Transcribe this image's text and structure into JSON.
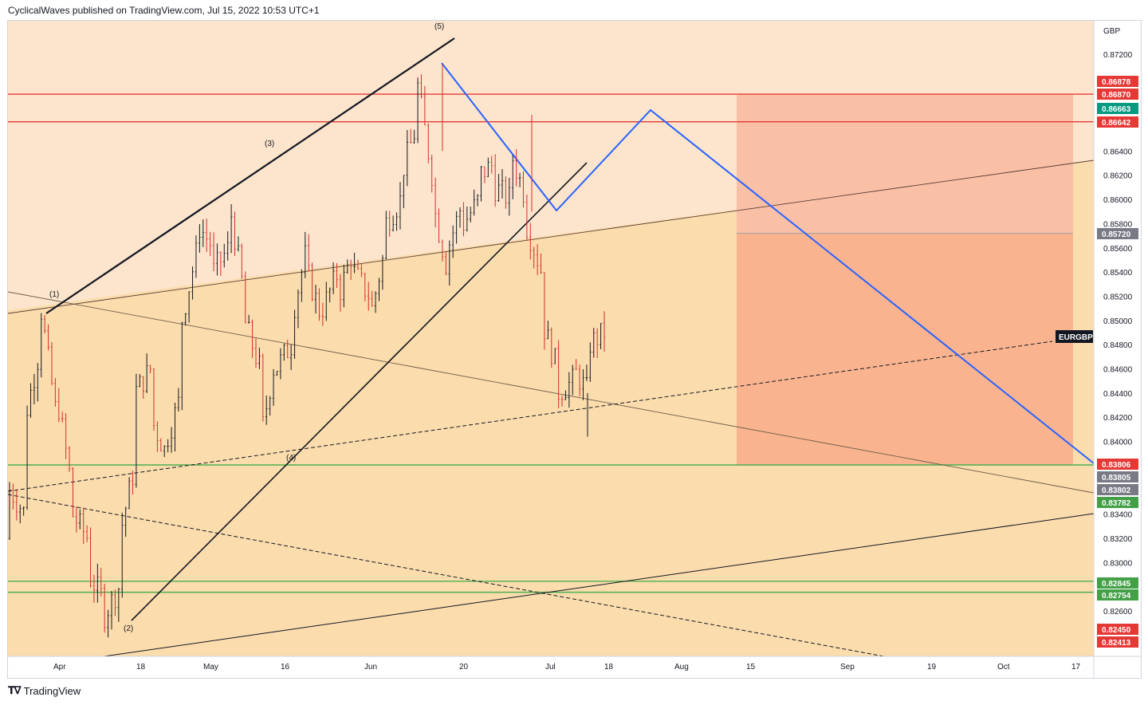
{
  "header": {
    "publisher_line": "CyclicalWaves published on TradingView.com, Jul 15, 2022 10:53 UTC+1"
  },
  "footer": {
    "logo_icon": "tradingview-logo-icon",
    "brand": "TradingView"
  },
  "colors": {
    "bg_top": "#fce5cc",
    "bg_mid": "#fbdaaa",
    "zone_red": "#f9b89a",
    "candle_up": "#131722",
    "candle_down": "#d32f2f",
    "resistance": "#e53935",
    "support": "#4caf50",
    "projection": "#2962ff"
  },
  "chart_data": {
    "type": "candlestick",
    "symbol": "EURGBP",
    "currency": "GBP",
    "ylim": [
      0.8232,
      0.874
    ],
    "y_ticks": [
      "0.87200",
      "0.86400",
      "0.86200",
      "0.86000",
      "0.85800",
      "0.85600",
      "0.85400",
      "0.85200",
      "0.85000",
      "0.84800",
      "0.84600",
      "0.84400",
      "0.84200",
      "0.84000",
      "0.83400",
      "0.83200",
      "0.83000",
      "0.82600"
    ],
    "x_ticks": [
      "Apr",
      "18",
      "May",
      "16",
      "Jun",
      "20",
      "Jul",
      "18",
      "Aug",
      "15",
      "Sep",
      "19",
      "Oct",
      "17"
    ],
    "price_tags": [
      {
        "label": "0.86878",
        "color": "#e53935"
      },
      {
        "label": "0.86870",
        "color": "#e53935"
      },
      {
        "label": "0.86663",
        "color": "#089981"
      },
      {
        "label": "0.86642",
        "color": "#e53935"
      },
      {
        "label": "0.85720",
        "color": "#787b86"
      },
      {
        "label": "0.83806",
        "color": "#e53935"
      },
      {
        "label": "0.83805",
        "color": "#787b86"
      },
      {
        "label": "0.83802",
        "color": "#787b86"
      },
      {
        "label": "0.83782",
        "color": "#43a047"
      },
      {
        "label": "0.82845",
        "color": "#43a047"
      },
      {
        "label": "0.82754",
        "color": "#43a047"
      },
      {
        "label": "0.82450",
        "color": "#e53935"
      },
      {
        "label": "0.82413",
        "color": "#e53935"
      }
    ],
    "symbol_tag": "EURGBP",
    "wave_labels": [
      "(1)",
      "(2)",
      "(3)",
      "(4)",
      "(5)"
    ],
    "horizontal_levels": [
      {
        "price": 0.8687,
        "style": "resistance"
      },
      {
        "price": 0.86642,
        "style": "resistance"
      },
      {
        "price": 0.83806,
        "style": "support"
      },
      {
        "price": 0.82845,
        "style": "support"
      },
      {
        "price": 0.82754,
        "style": "support"
      }
    ],
    "candles_ohlc_waypoints": [
      [
        0.832,
        0.836
      ],
      [
        0.834,
        0.842
      ],
      [
        0.848,
        0.851
      ],
      [
        0.842,
        0.844
      ],
      [
        0.836,
        0.834
      ],
      [
        0.832,
        0.829
      ],
      [
        0.827,
        0.8255
      ],
      [
        0.828,
        0.832
      ],
      [
        0.838,
        0.844
      ],
      [
        0.846,
        0.842
      ],
      [
        0.839,
        0.84
      ],
      [
        0.844,
        0.85
      ],
      [
        0.856,
        0.858
      ],
      [
        0.856,
        0.854
      ],
      [
        0.856,
        0.86
      ],
      [
        0.852,
        0.85
      ],
      [
        0.846,
        0.84
      ],
      [
        0.847,
        0.846
      ],
      [
        0.848,
        0.85
      ],
      [
        0.856,
        0.854
      ],
      [
        0.85,
        0.851
      ],
      [
        0.854,
        0.852
      ],
      [
        0.856,
        0.854
      ],
      [
        0.852,
        0.85
      ],
      [
        0.856,
        0.858
      ],
      [
        0.86,
        0.862
      ],
      [
        0.866,
        0.87
      ],
      [
        0.862,
        0.86
      ],
      [
        0.854,
        0.856
      ],
      [
        0.86,
        0.858
      ],
      [
        0.86,
        0.862
      ],
      [
        0.863,
        0.861
      ],
      [
        0.86,
        0.864
      ],
      [
        0.86,
        0.858
      ],
      [
        0.854,
        0.85
      ],
      [
        0.846,
        0.844
      ],
      [
        0.845,
        0.846
      ],
      [
        0.844,
        0.848
      ],
      [
        0.849,
        0.8485
      ]
    ]
  }
}
